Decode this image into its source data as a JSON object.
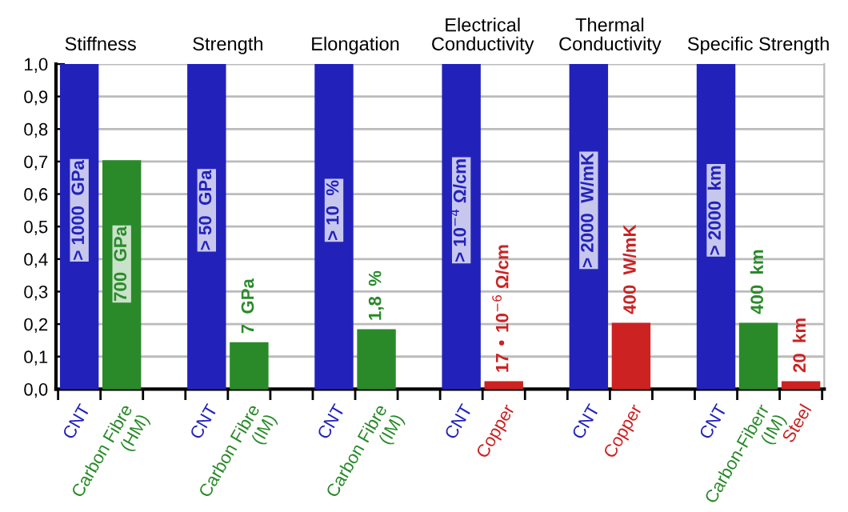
{
  "chart_data": {
    "type": "bar",
    "categories": [
      "CNT",
      "Carbon Fibre\n(HM)",
      null,
      "CNT",
      "Carbon Fibre\n(IM)",
      null,
      "CNT",
      "Carbon Fibre\n(IM)",
      null,
      "CNT",
      "Copper",
      null,
      "CNT",
      "Copper",
      null,
      "CNT",
      "Carbon-Fiberr\n(IM)",
      "Steel"
    ],
    "values": [
      1.0,
      0.7,
      null,
      1.0,
      0.14,
      null,
      1.0,
      0.18,
      null,
      1.0,
      0.02,
      null,
      1.0,
      0.2,
      null,
      1.0,
      0.2,
      0.02
    ],
    "colors": [
      "#2222bb",
      "#2a8a2a",
      null,
      "#2222bb",
      "#2a8a2a",
      null,
      "#2222bb",
      "#2a8a2a",
      null,
      "#2222bb",
      "#cc2222",
      null,
      "#2222bb",
      "#cc2222",
      null,
      "#2222bb",
      "#2a8a2a",
      "#cc2222"
    ],
    "annotations": [
      "Stiffness",
      "Strength",
      "Elongation",
      "Electrical\nConductivity",
      "Thermal\nConductivity",
      "Specific Strength",
      "> 1000  GPa",
      "700  GPa",
      "> 50  GPa",
      "7  GPa",
      "> 10  %",
      "1,8  %",
      "> 10$^{−4}$ Ω/cm",
      "17 • 10$^{−6}$ Ω/cm",
      "> 2000  W/mK",
      "400  W/mK",
      "> 2000  km",
      "400  km",
      "20  km"
    ],
    "ylim": [
      0,
      1.0
    ],
    "yticks": [
      {
        "value": 0,
        "label": "0,0"
      },
      {
        "value": 0.1,
        "label": "0,1"
      },
      {
        "value": 0.2,
        "label": "0,2"
      },
      {
        "value": 0.3,
        "label": "0,3"
      },
      {
        "value": 0.4,
        "label": "0,4"
      },
      {
        "value": 0.5,
        "label": "0,5"
      },
      {
        "value": 0.6,
        "label": "0,6"
      },
      {
        "value": 0.7,
        "label": "0,7"
      },
      {
        "value": 0.8,
        "label": "0,8"
      },
      {
        "value": 0.9,
        "label": "0,9"
      },
      {
        "value": 1.0,
        "label": "1,0"
      }
    ],
    "grid": "y",
    "legend": false
  }
}
